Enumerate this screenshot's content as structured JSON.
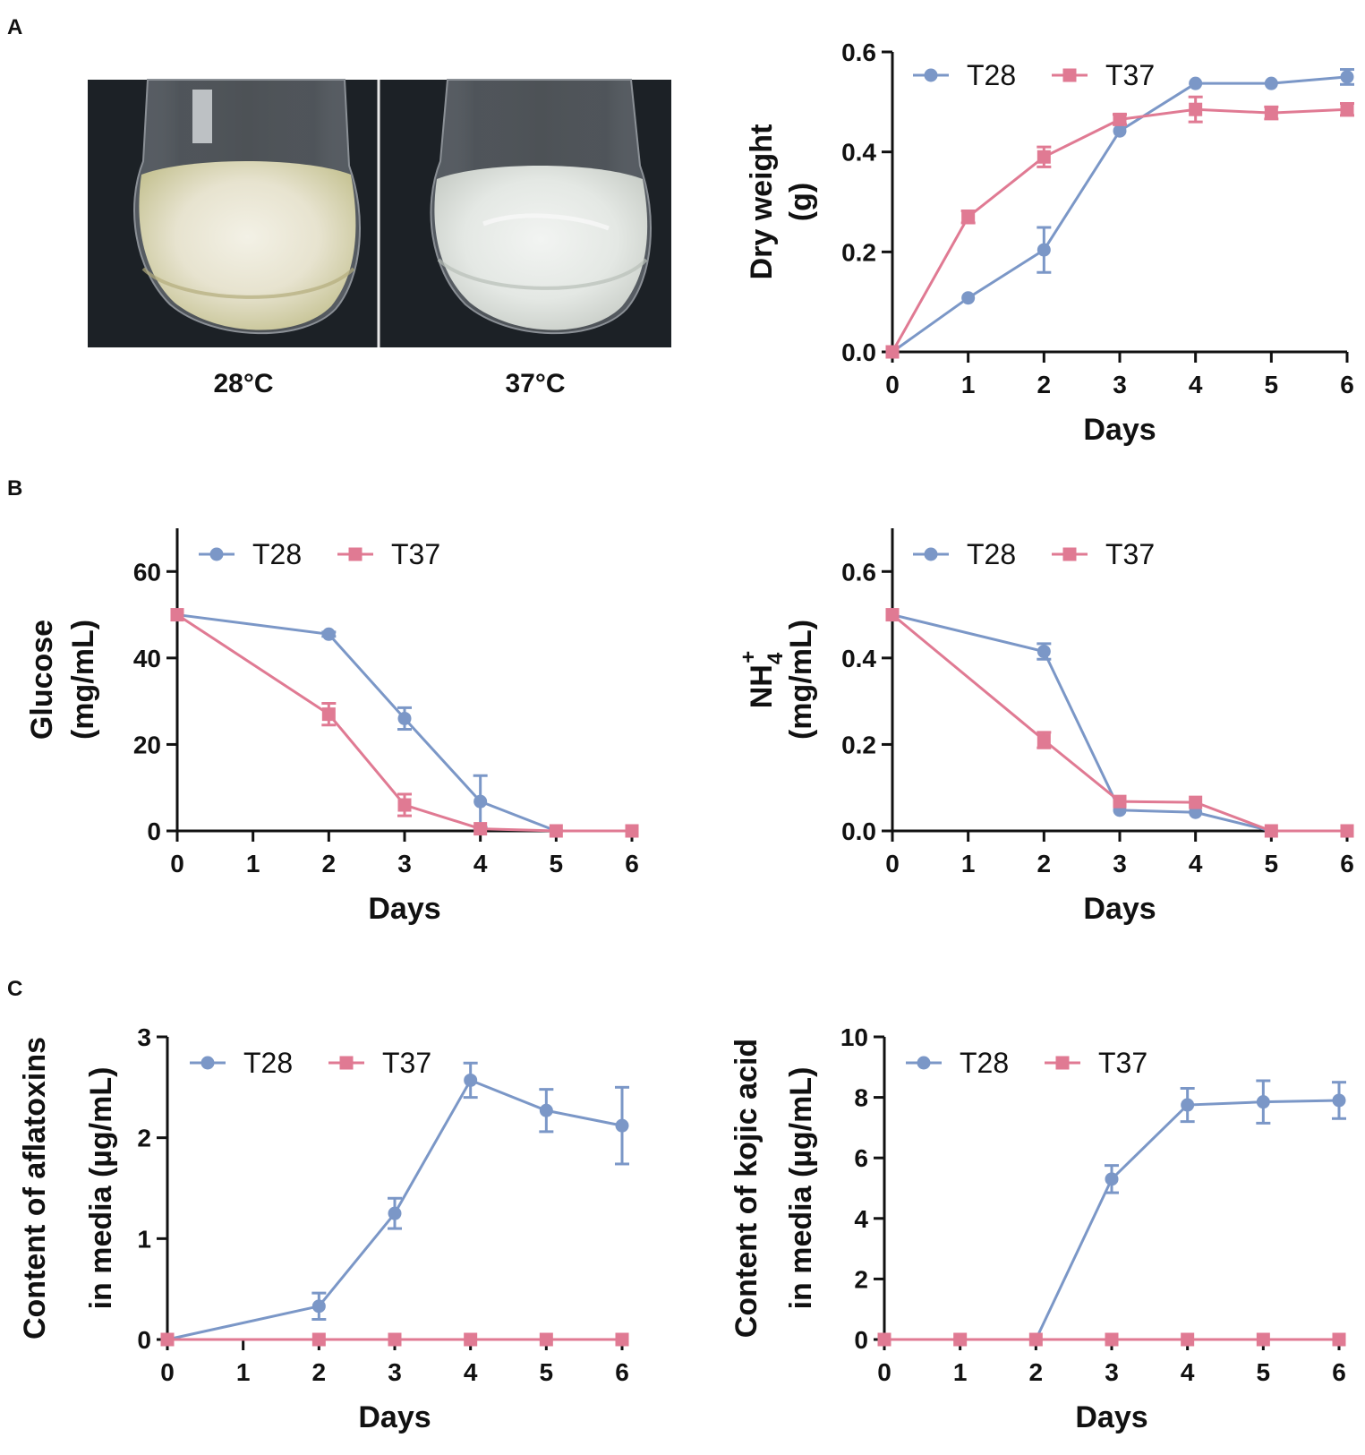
{
  "panels": {
    "a": "A",
    "b": "B",
    "c": "C"
  },
  "photo": {
    "left_caption": "28°C",
    "right_caption": "37°C",
    "description_colors": {
      "medium_28": "#c9c79a",
      "medium_37": "#d7dad2",
      "background": "#1a1f24"
    }
  },
  "colors": {
    "T28": "#7b97c7",
    "T37": "#e07a93",
    "axis": "#111111"
  },
  "chart_data": [
    {
      "id": "dryweight",
      "type": "line",
      "x": [
        0,
        1,
        2,
        3,
        4,
        5,
        6
      ],
      "xticks": [
        "0",
        "1",
        "2",
        "3",
        "4",
        "5",
        "6"
      ],
      "xlim": [
        0,
        6
      ],
      "ylim": [
        0,
        0.6
      ],
      "yticks": [
        "0.0",
        "0.2",
        "0.4",
        "0.6"
      ],
      "ytick_values": [
        0,
        0.2,
        0.4,
        0.6
      ],
      "xlabel": "Days",
      "ylabel_lines": [
        "Dry weight",
        "(g)"
      ],
      "series": [
        {
          "name": "T28",
          "marker": "circle",
          "x": [
            0,
            1,
            2,
            3,
            4,
            5,
            6
          ],
          "values": [
            0.0,
            0.108,
            0.204,
            0.442,
            0.537,
            0.537,
            0.55
          ],
          "errors": [
            0,
            0,
            0.045,
            0,
            0,
            0,
            0.015
          ]
        },
        {
          "name": "T37",
          "marker": "square",
          "x": [
            0,
            1,
            2,
            3,
            4,
            5,
            6
          ],
          "values": [
            0.0,
            0.27,
            0.39,
            0.465,
            0.485,
            0.478,
            0.485
          ],
          "errors": [
            0,
            0.012,
            0.02,
            0.01,
            0.025,
            0.012,
            0.012
          ]
        }
      ]
    },
    {
      "id": "glucose",
      "type": "line",
      "x": [
        0,
        2,
        3,
        4,
        5,
        6
      ],
      "xticks": [
        "0",
        "1",
        "2",
        "3",
        "4",
        "5",
        "6"
      ],
      "xlim": [
        0,
        6
      ],
      "ylim": [
        0,
        70
      ],
      "yticks": [
        "0",
        "20",
        "40",
        "60"
      ],
      "ytick_values": [
        0,
        20,
        40,
        60
      ],
      "xlabel": "Days",
      "ylabel_lines": [
        "Glucose",
        "(mg/mL)"
      ],
      "series": [
        {
          "name": "T28",
          "marker": "circle",
          "x": [
            0,
            2,
            3,
            4,
            5,
            6
          ],
          "values": [
            50,
            45.5,
            26,
            6.8,
            0,
            0
          ],
          "errors": [
            0,
            0.5,
            2.5,
            6,
            0,
            0
          ]
        },
        {
          "name": "T37",
          "marker": "square",
          "x": [
            0,
            2,
            3,
            4,
            5,
            6
          ],
          "values": [
            50,
            27,
            6,
            0.5,
            0,
            0
          ],
          "errors": [
            0,
            2.5,
            2.5,
            0,
            0,
            0
          ]
        }
      ]
    },
    {
      "id": "nh4",
      "type": "line",
      "x": [
        0,
        2,
        3,
        4,
        5,
        6
      ],
      "xticks": [
        "0",
        "1",
        "2",
        "3",
        "4",
        "5",
        "6"
      ],
      "xlim": [
        0,
        6
      ],
      "ylim": [
        0,
        0.7
      ],
      "yticks": [
        "0.0",
        "0.2",
        "0.4",
        "0.6"
      ],
      "ytick_values": [
        0,
        0.2,
        0.4,
        0.6
      ],
      "xlabel": "Days",
      "ylabel_main": "NH",
      "ylabel_sub": "4",
      "ylabel_sup": "+",
      "ylabel_unit": "(mg/mL)",
      "series": [
        {
          "name": "T28",
          "marker": "circle",
          "x": [
            0,
            2,
            3,
            4,
            5,
            6
          ],
          "values": [
            0.5,
            0.415,
            0.048,
            0.043,
            0,
            0
          ],
          "errors": [
            0,
            0.018,
            0,
            0,
            0,
            0
          ]
        },
        {
          "name": "T37",
          "marker": "square",
          "x": [
            0,
            2,
            3,
            4,
            5,
            6
          ],
          "values": [
            0.5,
            0.21,
            0.068,
            0.066,
            0,
            0
          ],
          "errors": [
            0,
            0.018,
            0,
            0,
            0,
            0
          ]
        }
      ]
    },
    {
      "id": "aflatoxins",
      "type": "line",
      "x": [
        0,
        2,
        3,
        4,
        5,
        6
      ],
      "xticks": [
        "0",
        "1",
        "2",
        "3",
        "4",
        "5",
        "6"
      ],
      "xlim": [
        0,
        6
      ],
      "ylim": [
        0,
        3
      ],
      "yticks": [
        "0",
        "1",
        "2",
        "3"
      ],
      "ytick_values": [
        0,
        1,
        2,
        3
      ],
      "xlabel": "Days",
      "ylabel_lines": [
        "Content of aflatoxins",
        "in media (µg/mL)"
      ],
      "series": [
        {
          "name": "T28",
          "marker": "circle",
          "x": [
            0,
            2,
            3,
            4,
            5,
            6
          ],
          "values": [
            0,
            0.33,
            1.25,
            2.57,
            2.27,
            2.12
          ],
          "errors": [
            0,
            0.13,
            0.15,
            0.17,
            0.21,
            0.38
          ]
        },
        {
          "name": "T37",
          "marker": "square",
          "x": [
            0,
            2,
            3,
            4,
            5,
            6
          ],
          "values": [
            0,
            0,
            0,
            0,
            0,
            0
          ],
          "errors": [
            0,
            0,
            0,
            0,
            0,
            0
          ]
        }
      ]
    },
    {
      "id": "kojic",
      "type": "line",
      "x": [
        0,
        1,
        2,
        3,
        4,
        5,
        6
      ],
      "xticks": [
        "0",
        "1",
        "2",
        "3",
        "4",
        "5",
        "6"
      ],
      "xlim": [
        0,
        6
      ],
      "ylim": [
        0,
        10
      ],
      "yticks": [
        "0",
        "2",
        "4",
        "6",
        "8",
        "10"
      ],
      "ytick_values": [
        0,
        2,
        4,
        6,
        8,
        10
      ],
      "xlabel": "Days",
      "ylabel_lines": [
        "Content of kojic acid",
        "in media (µg/mL)"
      ],
      "series": [
        {
          "name": "T28",
          "marker": "circle",
          "x": [
            0,
            1,
            2,
            3,
            4,
            5,
            6
          ],
          "values": [
            0,
            0,
            0,
            5.3,
            7.75,
            7.85,
            7.9
          ],
          "errors": [
            0,
            0,
            0,
            0.45,
            0.55,
            0.7,
            0.6
          ]
        },
        {
          "name": "T37",
          "marker": "square",
          "x": [
            0,
            1,
            2,
            3,
            4,
            5,
            6
          ],
          "values": [
            0,
            0,
            0,
            0,
            0,
            0,
            0
          ],
          "errors": [
            0,
            0,
            0,
            0,
            0,
            0,
            0
          ]
        }
      ]
    }
  ]
}
